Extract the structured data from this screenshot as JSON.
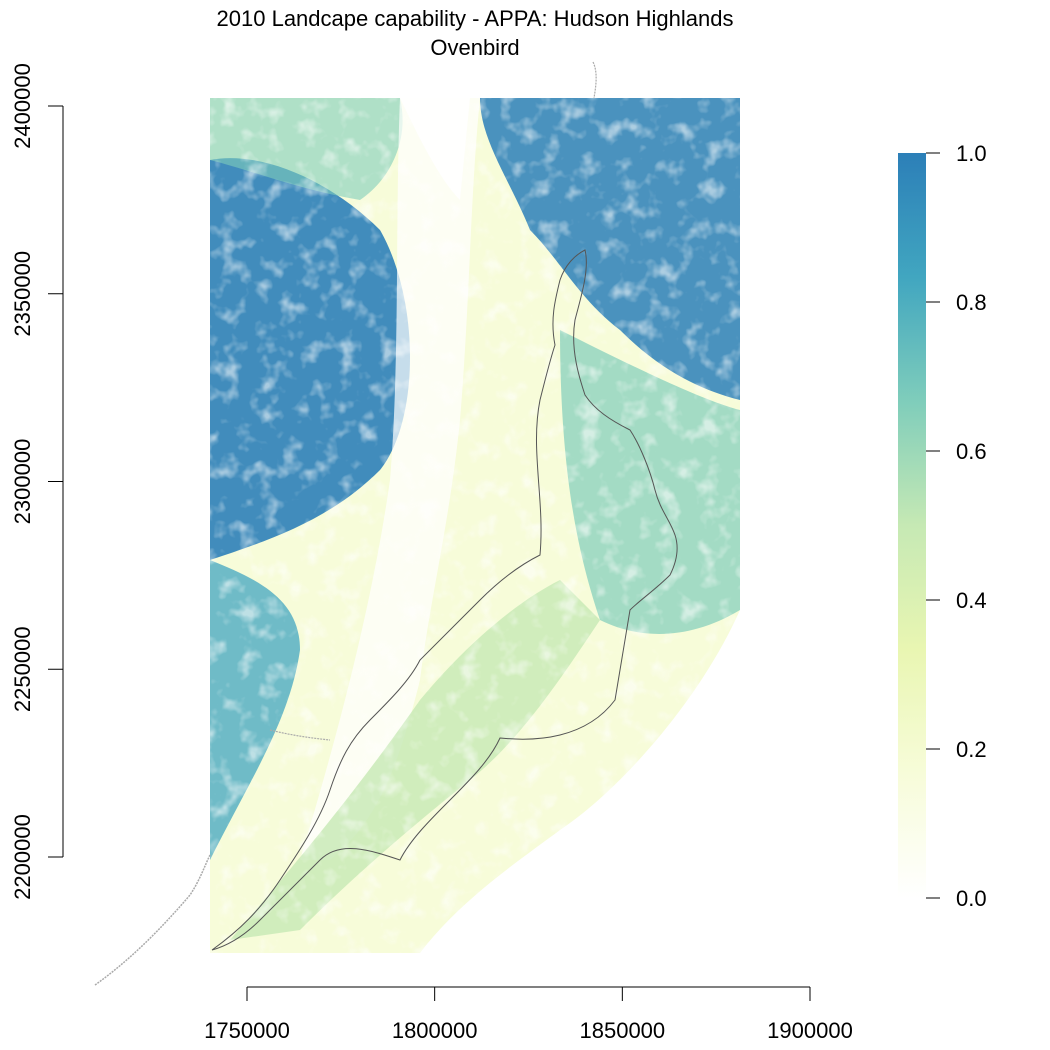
{
  "title": "2010 Landcape capability - APPA: Hudson Highlands",
  "subtitle": "Ovenbird",
  "colors": {
    "ramp": [
      "#ffffff",
      "#f7fcd9",
      "#e9f6b2",
      "#c6e9b4",
      "#7fcdbb",
      "#41a6c0",
      "#2c7fb8"
    ],
    "boundary": "#555555",
    "state_line": "#aaaaaa",
    "axis": "#000000"
  },
  "chart_data": {
    "type": "heatmap",
    "title": "2010 Landcape capability - APPA: Hudson Highlands",
    "subtitle": "Ovenbird",
    "xlabel": "",
    "ylabel": "",
    "x_ticks": [
      "1750000",
      "1800000",
      "1850000",
      "1900000"
    ],
    "x_tick_values": [
      1750000,
      1800000,
      1850000,
      1900000
    ],
    "y_ticks": [
      "2200000",
      "2250000",
      "2300000",
      "2350000",
      "2400000"
    ],
    "y_tick_values": [
      2200000,
      2250000,
      2300000,
      2350000,
      2400000
    ],
    "xlim": [
      1750000,
      1900000
    ],
    "ylim": [
      2200000,
      2400000
    ],
    "legend": {
      "position": "right",
      "ticks": [
        "0.0",
        "0.2",
        "0.4",
        "0.6",
        "0.8",
        "1.0"
      ],
      "tick_values": [
        0,
        0.2,
        0.4,
        0.6,
        0.8,
        1.0
      ],
      "range": [
        0,
        1
      ]
    },
    "grid": false
  }
}
